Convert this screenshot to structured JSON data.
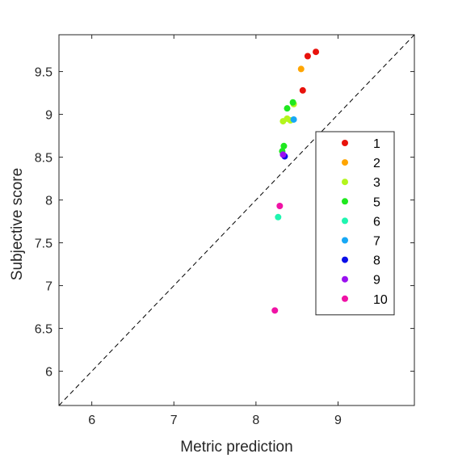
{
  "chart_data": {
    "type": "scatter",
    "title": "",
    "xlabel": "Metric prediction",
    "ylabel": "Subjective score",
    "xlim": [
      5.6,
      9.93
    ],
    "ylim": [
      5.6,
      9.93
    ],
    "xticks": [
      6,
      7,
      8,
      9
    ],
    "yticks": [
      6,
      6.5,
      7,
      7.5,
      8,
      8.5,
      9,
      9.5
    ],
    "grid": false,
    "reference_line": {
      "style": "dashed",
      "from": [
        5.6,
        5.6
      ],
      "to": [
        9.93,
        9.93
      ]
    },
    "legend": {
      "placement": "right"
    },
    "series": [
      {
        "name": "1",
        "color": "#e8120c",
        "points": [
          [
            8.73,
            9.73
          ],
          [
            8.63,
            9.68
          ],
          [
            8.57,
            9.28
          ]
        ]
      },
      {
        "name": "2",
        "color": "#ffa500",
        "points": [
          [
            8.55,
            9.53
          ]
        ]
      },
      {
        "name": "3",
        "color": "#b3f51c",
        "points": [
          [
            8.33,
            8.92
          ],
          [
            8.38,
            8.95
          ],
          [
            8.42,
            8.93
          ],
          [
            8.46,
            9.12
          ]
        ]
      },
      {
        "name": "5",
        "color": "#1fe81f",
        "points": [
          [
            8.38,
            9.07
          ],
          [
            8.45,
            9.14
          ],
          [
            8.34,
            8.63
          ],
          [
            8.32,
            8.57
          ]
        ]
      },
      {
        "name": "6",
        "color": "#1ff5b0",
        "points": [
          [
            8.27,
            7.8
          ]
        ]
      },
      {
        "name": "7",
        "color": "#17a8f5",
        "points": [
          [
            8.46,
            8.94
          ]
        ]
      },
      {
        "name": "8",
        "color": "#0a0ee8",
        "points": [
          [
            8.35,
            8.51
          ]
        ]
      },
      {
        "name": "9",
        "color": "#9a10f0",
        "points": [
          [
            8.33,
            8.53
          ]
        ]
      },
      {
        "name": "10",
        "color": "#f012a5",
        "points": [
          [
            8.29,
            7.93
          ],
          [
            8.23,
            6.71
          ]
        ]
      }
    ]
  }
}
